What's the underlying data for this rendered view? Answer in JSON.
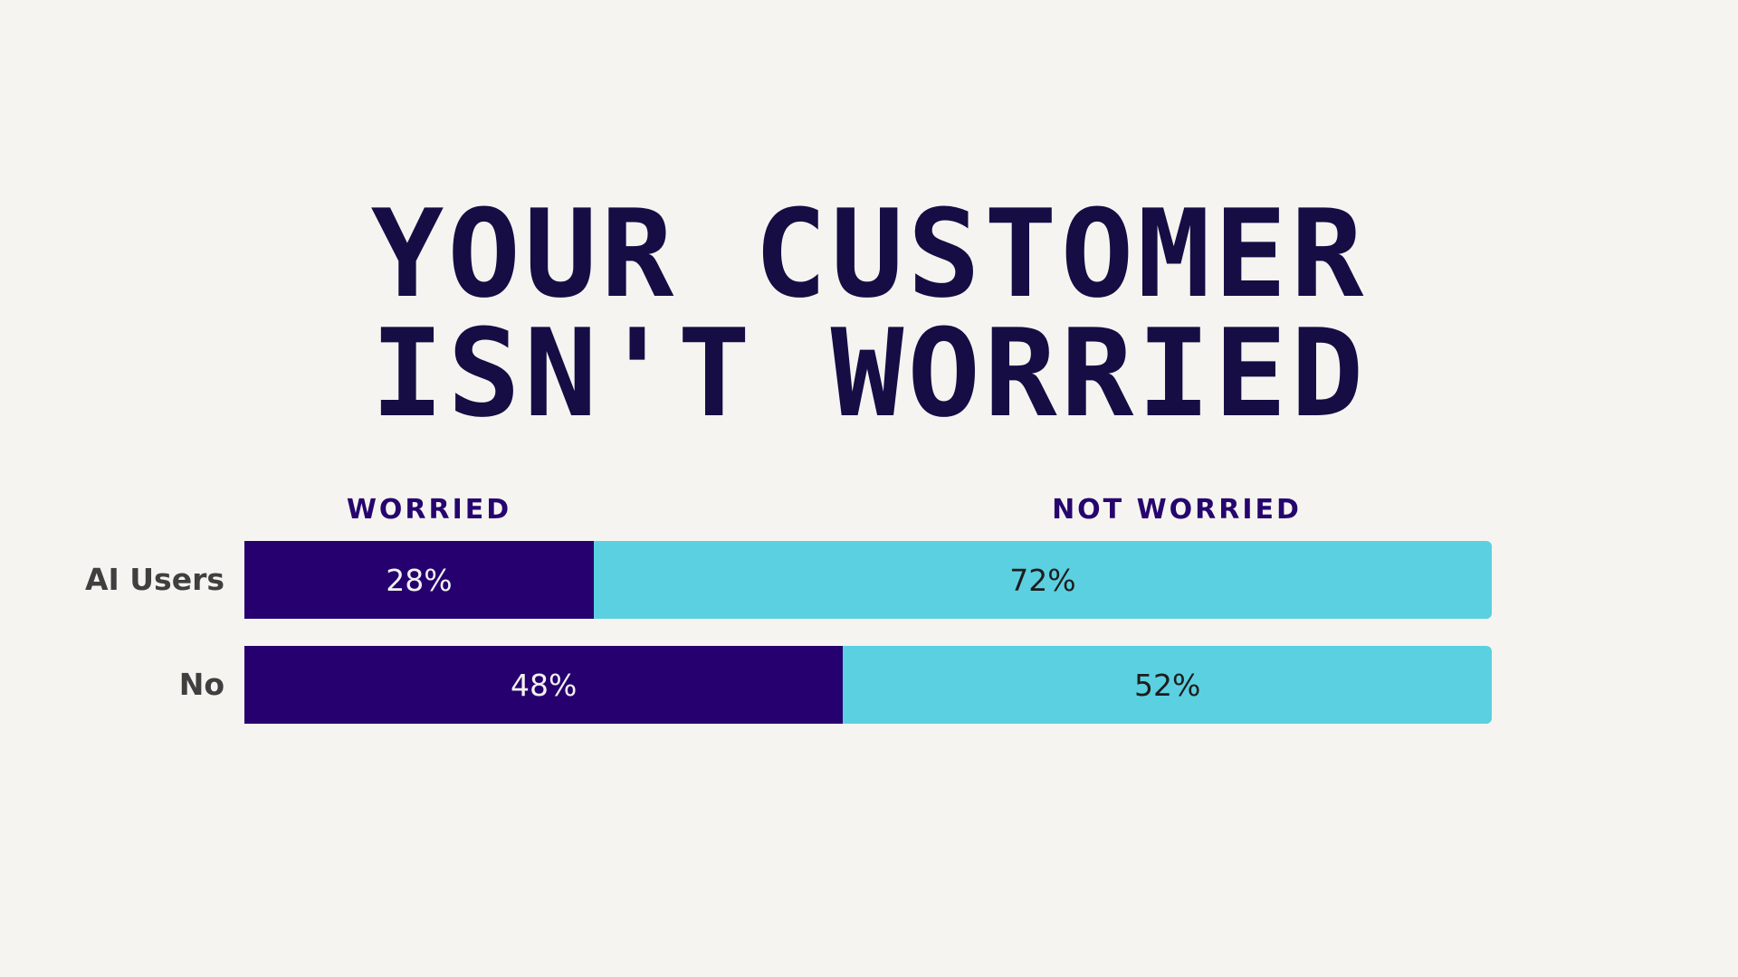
{
  "title": {
    "line1": "YOUR CUSTOMER",
    "line2": "ISN'T WORRIED"
  },
  "colors": {
    "background": "#f5f4f0",
    "title": "#150d44",
    "worried": "#26006e",
    "not_worried": "#5bd0e0"
  },
  "chart_data": {
    "type": "bar",
    "orientation": "horizontal",
    "stacked": true,
    "categories": [
      "AI Users",
      "No"
    ],
    "series": [
      {
        "name": "WORRIED",
        "values": [
          28,
          48
        ],
        "labels": [
          "28%",
          "48%"
        ]
      },
      {
        "name": "NOT WORRIED",
        "values": [
          72,
          52
        ],
        "labels": [
          "72%",
          "52%"
        ]
      }
    ],
    "xlim": [
      0,
      100
    ],
    "grid": false,
    "legend_position": "top"
  }
}
